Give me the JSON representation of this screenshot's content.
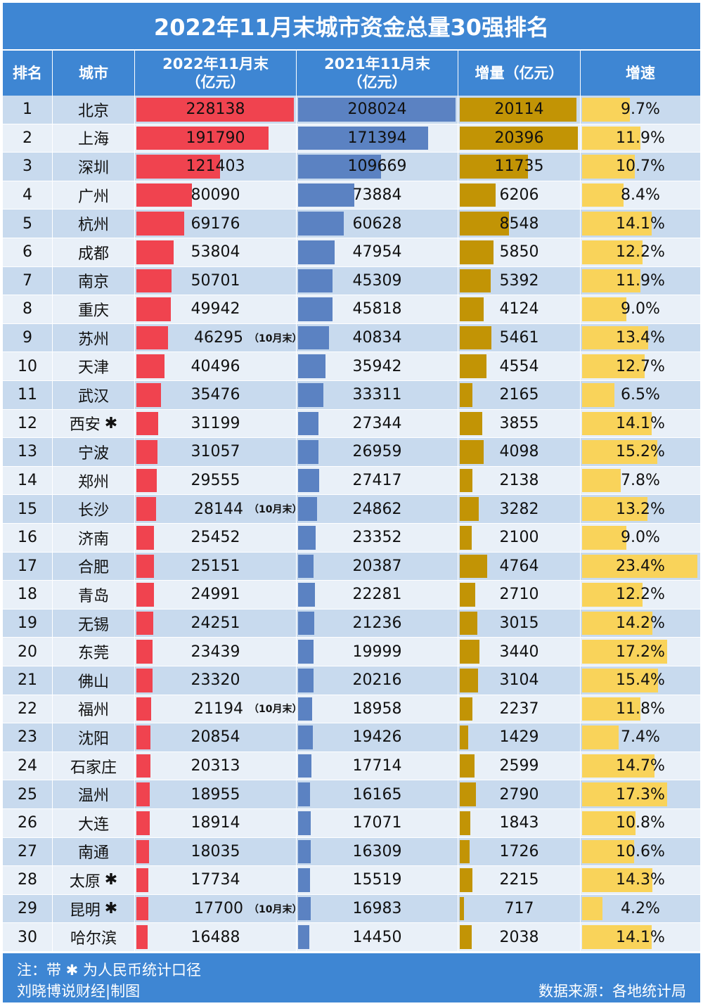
{
  "title": "2022年11月末城市资金总量30强排名",
  "headers": {
    "rank": "排名",
    "city": "城市",
    "col_2022_line1": "2022年11月末",
    "col_2022_line2": "（亿元）",
    "col_2021_line1": "2021年11月末",
    "col_2021_line2": "（亿元）",
    "increase": "增量（亿元）",
    "growth": "增速"
  },
  "footer": {
    "note": "注：带 ✱ 为人民币统计口径",
    "credit": "刘晓博说财经|制图",
    "source": "数据来源：各地统计局"
  },
  "colors": {
    "header_bg": "#3e86d3",
    "bar_2022": "#f0434f",
    "bar_2021": "#5b82c2",
    "bar_increase": "#c29405",
    "bar_growth": "#f9d35a",
    "row_odd": "#c8daee",
    "row_even": "#e9f0f8"
  },
  "chart_data": {
    "type": "table",
    "title": "2022年11月末城市资金总量30强排名",
    "star_symbol": "✱",
    "columns": [
      "排名",
      "城市",
      "2022年11月末（亿元）",
      "2021年11月末（亿元）",
      "增量（亿元）",
      "增速"
    ],
    "rows": [
      {
        "rank": "1",
        "city": "北京",
        "star": false,
        "v2022": 228138,
        "note": "",
        "v2021": 208024,
        "increase": 20114,
        "growth": "9.7%"
      },
      {
        "rank": "2",
        "city": "上海",
        "star": false,
        "v2022": 191790,
        "note": "",
        "v2021": 171394,
        "increase": 20396,
        "growth": "11.9%"
      },
      {
        "rank": "3",
        "city": "深圳",
        "star": false,
        "v2022": 121403,
        "note": "",
        "v2021": 109669,
        "increase": 11735,
        "growth": "10.7%"
      },
      {
        "rank": "4",
        "city": "广州",
        "star": false,
        "v2022": 80090,
        "note": "",
        "v2021": 73884,
        "increase": 6206,
        "growth": "8.4%"
      },
      {
        "rank": "5",
        "city": "杭州",
        "star": false,
        "v2022": 69176,
        "note": "",
        "v2021": 60628,
        "increase": 8548,
        "growth": "14.1%"
      },
      {
        "rank": "6",
        "city": "成都",
        "star": false,
        "v2022": 53804,
        "note": "",
        "v2021": 47954,
        "increase": 5850,
        "growth": "12.2%"
      },
      {
        "rank": "7",
        "city": "南京",
        "star": false,
        "v2022": 50701,
        "note": "",
        "v2021": 45309,
        "increase": 5392,
        "growth": "11.9%"
      },
      {
        "rank": "8",
        "city": "重庆",
        "star": false,
        "v2022": 49942,
        "note": "",
        "v2021": 45818,
        "increase": 4124,
        "growth": "9.0%"
      },
      {
        "rank": "9",
        "city": "苏州",
        "star": false,
        "v2022": 46295,
        "note": "（10月末）",
        "v2021": 40834,
        "increase": 5461,
        "growth": "13.4%"
      },
      {
        "rank": "10",
        "city": "天津",
        "star": false,
        "v2022": 40496,
        "note": "",
        "v2021": 35942,
        "increase": 4554,
        "growth": "12.7%"
      },
      {
        "rank": "11",
        "city": "武汉",
        "star": false,
        "v2022": 35476,
        "note": "",
        "v2021": 33311,
        "increase": 2165,
        "growth": "6.5%"
      },
      {
        "rank": "12",
        "city": "西安",
        "star": true,
        "v2022": 31199,
        "note": "",
        "v2021": 27344,
        "increase": 3855,
        "growth": "14.1%"
      },
      {
        "rank": "13",
        "city": "宁波",
        "star": false,
        "v2022": 31057,
        "note": "",
        "v2021": 26959,
        "increase": 4098,
        "growth": "15.2%"
      },
      {
        "rank": "14",
        "city": "郑州",
        "star": false,
        "v2022": 29555,
        "note": "",
        "v2021": 27417,
        "increase": 2138,
        "growth": "7.8%"
      },
      {
        "rank": "15",
        "city": "长沙",
        "star": false,
        "v2022": 28144,
        "note": "（10月末）",
        "v2021": 24862,
        "increase": 3282,
        "growth": "13.2%"
      },
      {
        "rank": "16",
        "city": "济南",
        "star": false,
        "v2022": 25452,
        "note": "",
        "v2021": 23352,
        "increase": 2100,
        "growth": "9.0%"
      },
      {
        "rank": "17",
        "city": "合肥",
        "star": false,
        "v2022": 25151,
        "note": "",
        "v2021": 20387,
        "increase": 4764,
        "growth": "23.4%"
      },
      {
        "rank": "18",
        "city": "青岛",
        "star": false,
        "v2022": 24991,
        "note": "",
        "v2021": 22281,
        "increase": 2710,
        "growth": "12.2%"
      },
      {
        "rank": "19",
        "city": "无锡",
        "star": false,
        "v2022": 24251,
        "note": "",
        "v2021": 21236,
        "increase": 3015,
        "growth": "14.2%"
      },
      {
        "rank": "20",
        "city": "东莞",
        "star": false,
        "v2022": 23439,
        "note": "",
        "v2021": 19999,
        "increase": 3440,
        "growth": "17.2%"
      },
      {
        "rank": "21",
        "city": "佛山",
        "star": false,
        "v2022": 23320,
        "note": "",
        "v2021": 20216,
        "increase": 3104,
        "growth": "15.4%"
      },
      {
        "rank": "22",
        "city": "福州",
        "star": false,
        "v2022": 21194,
        "note": "（10月末）",
        "v2021": 18958,
        "increase": 2237,
        "growth": "11.8%"
      },
      {
        "rank": "23",
        "city": "沈阳",
        "star": false,
        "v2022": 20854,
        "note": "",
        "v2021": 19426,
        "increase": 1429,
        "growth": "7.4%"
      },
      {
        "rank": "24",
        "city": "石家庄",
        "star": false,
        "v2022": 20313,
        "note": "",
        "v2021": 17714,
        "increase": 2599,
        "growth": "14.7%"
      },
      {
        "rank": "25",
        "city": "温州",
        "star": false,
        "v2022": 18955,
        "note": "",
        "v2021": 16165,
        "increase": 2790,
        "growth": "17.3%"
      },
      {
        "rank": "26",
        "city": "大连",
        "star": false,
        "v2022": 18914,
        "note": "",
        "v2021": 17071,
        "increase": 1843,
        "growth": "10.8%"
      },
      {
        "rank": "27",
        "city": "南通",
        "star": false,
        "v2022": 18035,
        "note": "",
        "v2021": 16309,
        "increase": 1726,
        "growth": "10.6%"
      },
      {
        "rank": "28",
        "city": "太原",
        "star": true,
        "v2022": 17734,
        "note": "",
        "v2021": 15519,
        "increase": 2215,
        "growth": "14.3%"
      },
      {
        "rank": "29",
        "city": "昆明",
        "star": true,
        "v2022": 17700,
        "note": "（10月末）",
        "v2021": 16983,
        "increase": 717,
        "growth": "4.2%"
      },
      {
        "rank": "30",
        "city": "哈尔滨",
        "star": false,
        "v2022": 16488,
        "note": "",
        "v2021": 14450,
        "increase": 2038,
        "growth": "14.1%"
      }
    ]
  }
}
